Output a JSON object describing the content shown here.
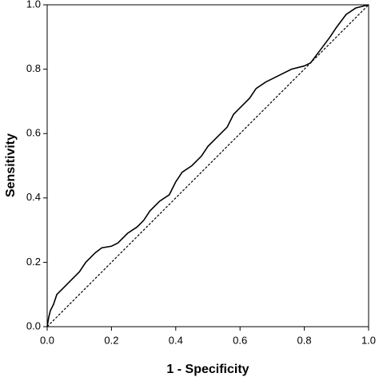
{
  "chart_data": {
    "type": "line",
    "xlabel": "1 - Specificity",
    "ylabel": "Sensitivity",
    "xlim": [
      0,
      1
    ],
    "ylim": [
      0,
      1
    ],
    "xticks": [
      {
        "value": 0,
        "label": "0.0"
      },
      0.2,
      0.4,
      0.6,
      0.8,
      {
        "value": 1,
        "label": "1.0"
      }
    ],
    "yticks": [
      {
        "value": 0,
        "label": "0.0"
      },
      0.2,
      0.4,
      0.6,
      0.8,
      {
        "value": 1,
        "label": "1.0"
      }
    ],
    "grid": false,
    "series": [
      {
        "color": "#000000",
        "dashed": false,
        "x": [
          0,
          0.005,
          0.01,
          0.02,
          0.03,
          0.05,
          0.07,
          0.1,
          0.12,
          0.15,
          0.17,
          0.2,
          0.22,
          0.25,
          0.28,
          0.3,
          0.32,
          0.35,
          0.38,
          0.4,
          0.42,
          0.45,
          0.48,
          0.5,
          0.53,
          0.56,
          0.58,
          0.6,
          0.63,
          0.65,
          0.68,
          0.72,
          0.76,
          0.8,
          0.82,
          0.85,
          0.88,
          0.9,
          0.93,
          0.96,
          1
        ],
        "values": [
          0,
          0.03,
          0.05,
          0.07,
          0.1,
          0.12,
          0.14,
          0.17,
          0.2,
          0.23,
          0.245,
          0.25,
          0.26,
          0.29,
          0.31,
          0.33,
          0.36,
          0.39,
          0.41,
          0.45,
          0.48,
          0.5,
          0.53,
          0.56,
          0.59,
          0.62,
          0.66,
          0.68,
          0.71,
          0.74,
          0.76,
          0.78,
          0.8,
          0.81,
          0.82,
          0.86,
          0.9,
          0.93,
          0.97,
          0.99,
          1
        ]
      },
      {
        "color": "#000000",
        "dashed": true,
        "x": [
          0,
          1
        ],
        "values": [
          0,
          1
        ]
      }
    ]
  }
}
